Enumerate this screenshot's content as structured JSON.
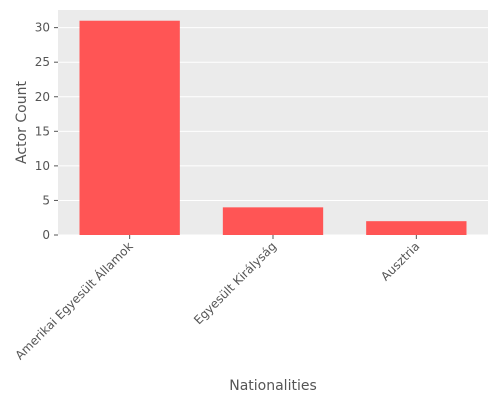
{
  "chart_data": {
    "type": "bar",
    "categories": [
      "Amerikai Egyesült Államok",
      "Egyesült Királyság",
      "Ausztria"
    ],
    "values": [
      31,
      4,
      2
    ],
    "title": "",
    "xlabel": "Nationalities",
    "ylabel": "Actor Count",
    "ylim": [
      0,
      32.55
    ],
    "yticks": [
      0,
      5,
      10,
      15,
      20,
      25,
      30
    ],
    "grid": true,
    "legend": "none",
    "colors": {
      "bar": "#ff5555",
      "plot_background": "#ebebeb",
      "grid": "#ffffff",
      "text": "#555555"
    }
  }
}
